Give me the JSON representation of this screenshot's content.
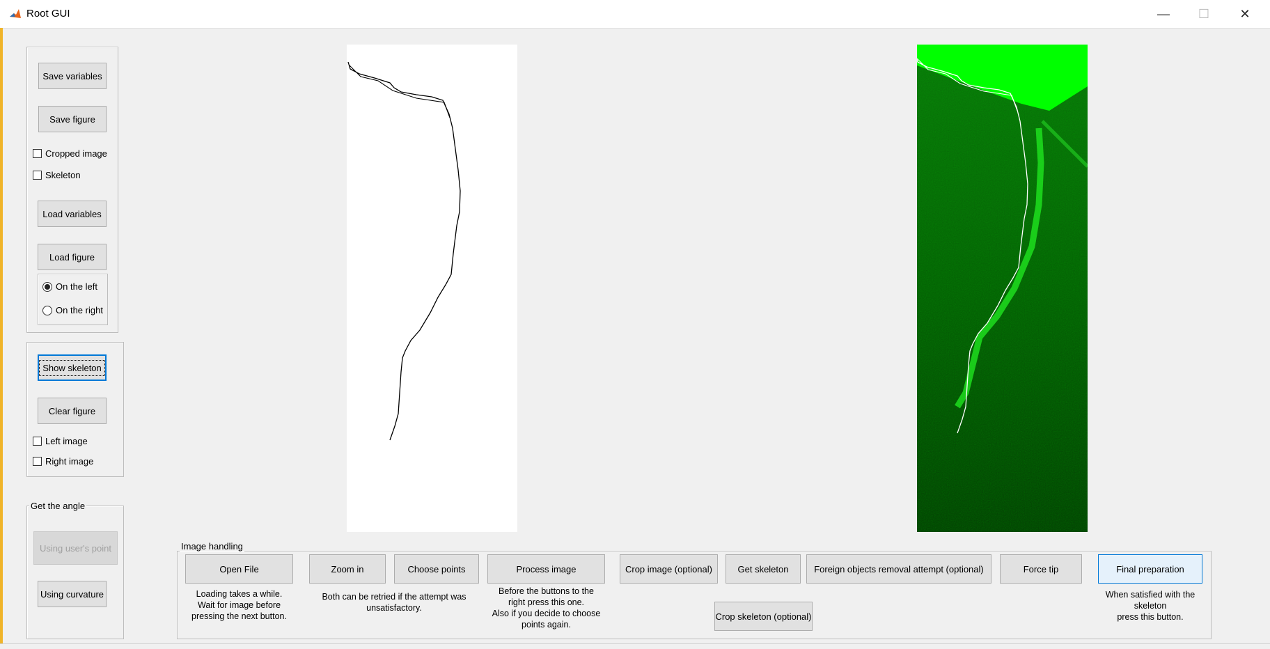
{
  "window": {
    "title": "Root GUI",
    "icon": "matlab-icon",
    "controls": {
      "minimize": "minimize-icon",
      "maximize": "maximize-icon",
      "close": "close-icon"
    }
  },
  "left_panel": {
    "save_variables": "Save variables",
    "save_figure": "Save figure",
    "cropped_image": "Cropped image",
    "skeleton": "Skeleton",
    "load_variables": "Load variables",
    "load_figure": "Load figure",
    "on_the_left": "On the left",
    "on_the_right": "On the right"
  },
  "display_panel": {
    "show_skeleton": "Show skeleton",
    "clear_figure": "Clear figure",
    "left_image": "Left image",
    "right_image": "Right image"
  },
  "angle_panel": {
    "title": "Get the angle",
    "using_users_point": "Using user's point",
    "using_curvature": "Using curvature"
  },
  "image_handling": {
    "title": "Image handling",
    "open_file": "Open File",
    "open_file_note_1": "Loading takes a while.",
    "open_file_note_2": "Wait for  image before",
    "open_file_note_3": "pressing the next button.",
    "zoom_in": "Zoom in",
    "choose_points": "Choose points",
    "retry_note_1": "Both can be retried if the attempt was",
    "retry_note_2": "unsatisfactory.",
    "process_image": "Process image",
    "process_note_1": "Before the buttons to the",
    "process_note_2": "right press this one.",
    "process_note_3": "Also if you decide to choose",
    "process_note_4": "points again.",
    "crop_image": "Crop image (optional)",
    "get_skeleton": "Get skeleton",
    "foreign_objects": "Foreign objects removal attempt (optional)",
    "force_tip": "Force tip",
    "final_preparation": "Final preparation",
    "final_note_1": "When satisfied with the",
    "final_note_2": "skeleton",
    "final_note_3": "press this button.",
    "crop_skeleton": "Crop skeleton (optional)"
  },
  "colors": {
    "accent": "#0078d7",
    "frame": "#f0b429",
    "root_green": "#00ff00"
  }
}
